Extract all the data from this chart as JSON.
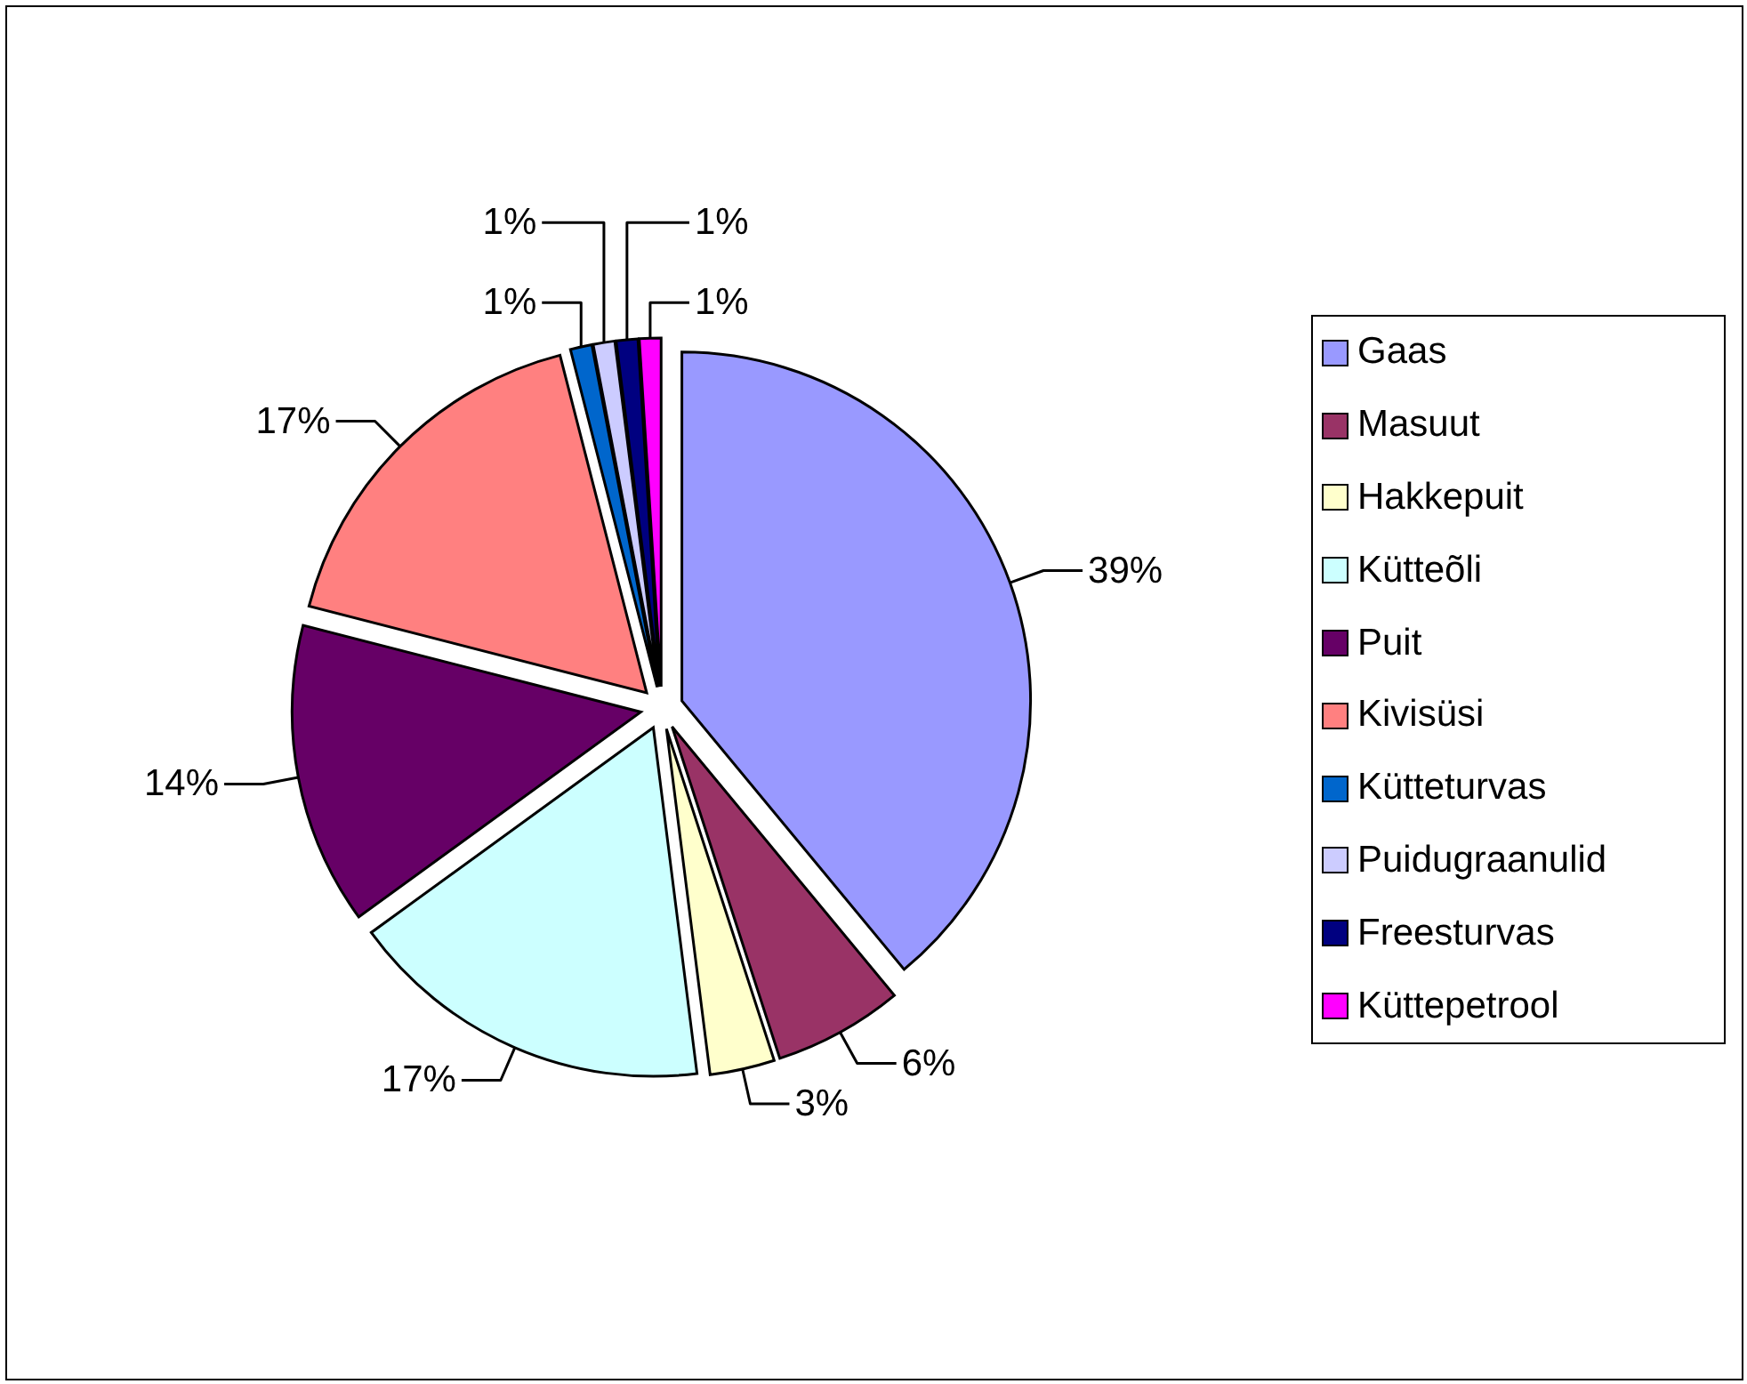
{
  "chart_data": {
    "type": "pie",
    "categories": [
      "Gaas",
      "Masuut",
      "Hakkepuit",
      "Kütteõli",
      "Puit",
      "Kivisüsi",
      "Kütteturvas",
      "Puidugraanulid",
      "Freesturvas",
      "Küttepetrool"
    ],
    "values": [
      39,
      6,
      3,
      17,
      14,
      17,
      1,
      1,
      1,
      1
    ],
    "colors": [
      "#9999ff",
      "#993366",
      "#ffffcc",
      "#ccffff",
      "#660066",
      "#ff8080",
      "#0066cc",
      "#ccccff",
      "#000080",
      "#ff00ff"
    ],
    "value_labels": [
      "39%",
      "6%",
      "3%",
      "17%",
      "14%",
      "17%",
      "1%",
      "1%",
      "1%",
      "1%"
    ],
    "legend": "right"
  }
}
